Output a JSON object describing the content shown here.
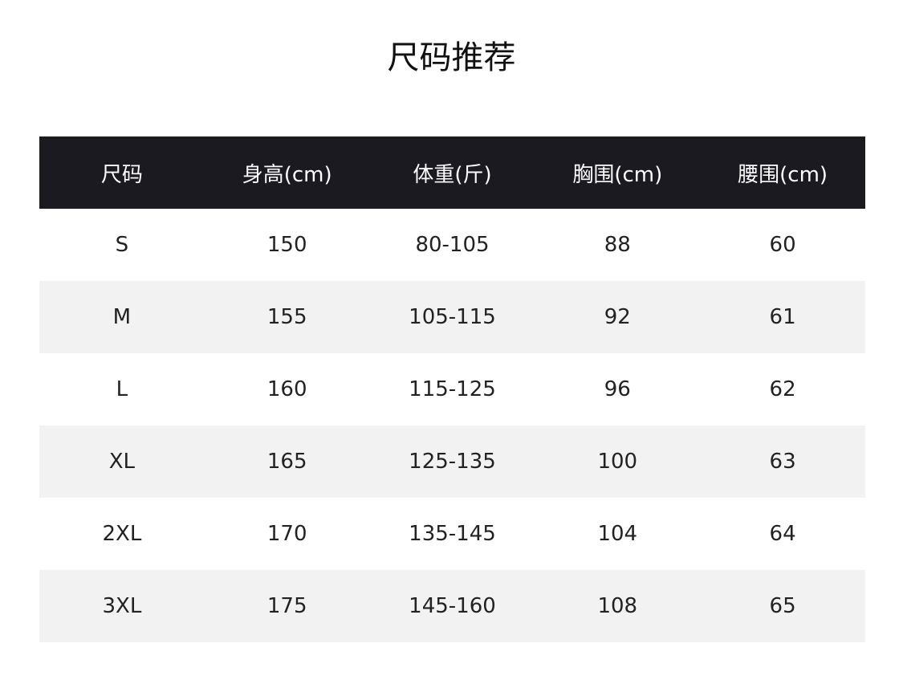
{
  "title": "尺码推荐",
  "colors": {
    "header_bg": "#1a1a20",
    "stripe_bg": "#f2f2f2"
  },
  "table": {
    "headers": [
      "尺码",
      "身高(cm)",
      "体重(斤)",
      "胸围(cm)",
      "腰围(cm)"
    ],
    "rows": [
      [
        "S",
        "150",
        "80-105",
        "88",
        "60"
      ],
      [
        "M",
        "155",
        "105-115",
        "92",
        "61"
      ],
      [
        "L",
        "160",
        "115-125",
        "96",
        "62"
      ],
      [
        "XL",
        "165",
        "125-135",
        "100",
        "63"
      ],
      [
        "2XL",
        "170",
        "135-145",
        "104",
        "64"
      ],
      [
        "3XL",
        "175",
        "145-160",
        "108",
        "65"
      ]
    ]
  }
}
